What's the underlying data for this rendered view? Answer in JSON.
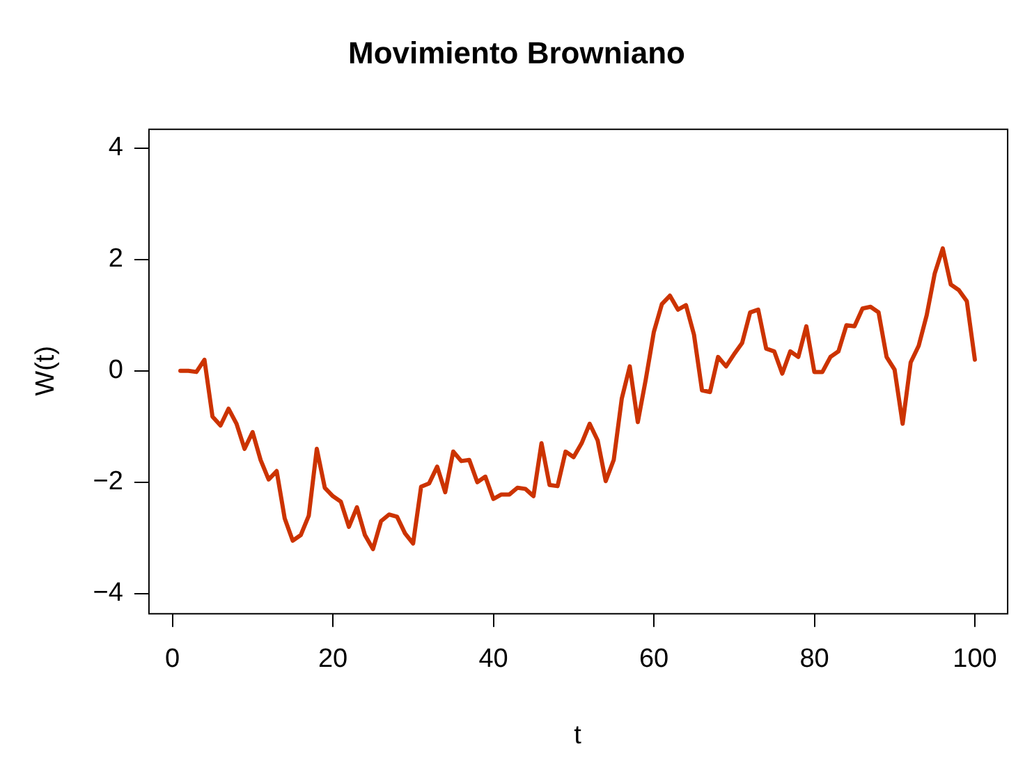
{
  "chart_data": {
    "type": "line",
    "title": "Movimiento Browniano",
    "xlabel": "t",
    "ylabel": "W(t)",
    "x": [
      1,
      2,
      3,
      4,
      5,
      6,
      7,
      8,
      9,
      10,
      11,
      12,
      13,
      14,
      15,
      16,
      17,
      18,
      19,
      20,
      21,
      22,
      23,
      24,
      25,
      26,
      27,
      28,
      29,
      30,
      31,
      32,
      33,
      34,
      35,
      36,
      37,
      38,
      39,
      40,
      41,
      42,
      43,
      44,
      45,
      46,
      47,
      48,
      49,
      50,
      51,
      52,
      53,
      54,
      55,
      56,
      57,
      58,
      59,
      60,
      61,
      62,
      63,
      64,
      65,
      66,
      67,
      68,
      69,
      70,
      71,
      72,
      73,
      74,
      75,
      76,
      77,
      78,
      79,
      80,
      81,
      82,
      83,
      84,
      85,
      86,
      87,
      88,
      89,
      90,
      91,
      92,
      93,
      94,
      95,
      96,
      97,
      98,
      99,
      100
    ],
    "series": [
      {
        "color": "#cc3300",
        "values": [
          0,
          0,
          -0.02,
          0.2,
          -0.82,
          -0.98,
          -0.68,
          -0.95,
          -1.4,
          -1.1,
          -1.6,
          -1.95,
          -1.8,
          -2.65,
          -3.05,
          -2.95,
          -2.6,
          -1.4,
          -2.1,
          -2.25,
          -2.35,
          -2.8,
          -2.45,
          -2.95,
          -3.2,
          -2.7,
          -2.58,
          -2.62,
          -2.92,
          -3.1,
          -2.08,
          -2.02,
          -1.72,
          -2.18,
          -1.45,
          -1.62,
          -1.6,
          -2.0,
          -1.9,
          -2.3,
          -2.22,
          -2.22,
          -2.1,
          -2.12,
          -2.25,
          -1.3,
          -2.05,
          -2.07,
          -1.45,
          -1.55,
          -1.3,
          -0.95,
          -1.25,
          -1.98,
          -1.6,
          -0.5,
          0.08,
          -0.92,
          -0.15,
          0.7,
          1.2,
          1.35,
          1.1,
          1.18,
          0.65,
          -0.35,
          -0.38,
          0.25,
          0.08,
          0.3,
          0.5,
          1.05,
          1.1,
          0.4,
          0.35,
          -0.05,
          0.35,
          0.25,
          0.8,
          -0.02,
          -0.02,
          0.25,
          0.35,
          0.82,
          0.8,
          1.12,
          1.15,
          1.05,
          0.25,
          0.02,
          -0.95,
          0.15,
          0.45,
          1.0,
          1.75,
          2.2,
          1.55,
          1.45,
          1.25,
          0.2
        ]
      }
    ],
    "xlim": [
      -3,
      104
    ],
    "ylim": [
      -4.35,
      4.35
    ],
    "xticks": [
      0,
      20,
      40,
      60,
      80,
      100
    ],
    "yticks": [
      -4,
      -2,
      0,
      2,
      4
    ],
    "grid": false,
    "legend": false,
    "marker": "none",
    "line_style": "solid"
  }
}
